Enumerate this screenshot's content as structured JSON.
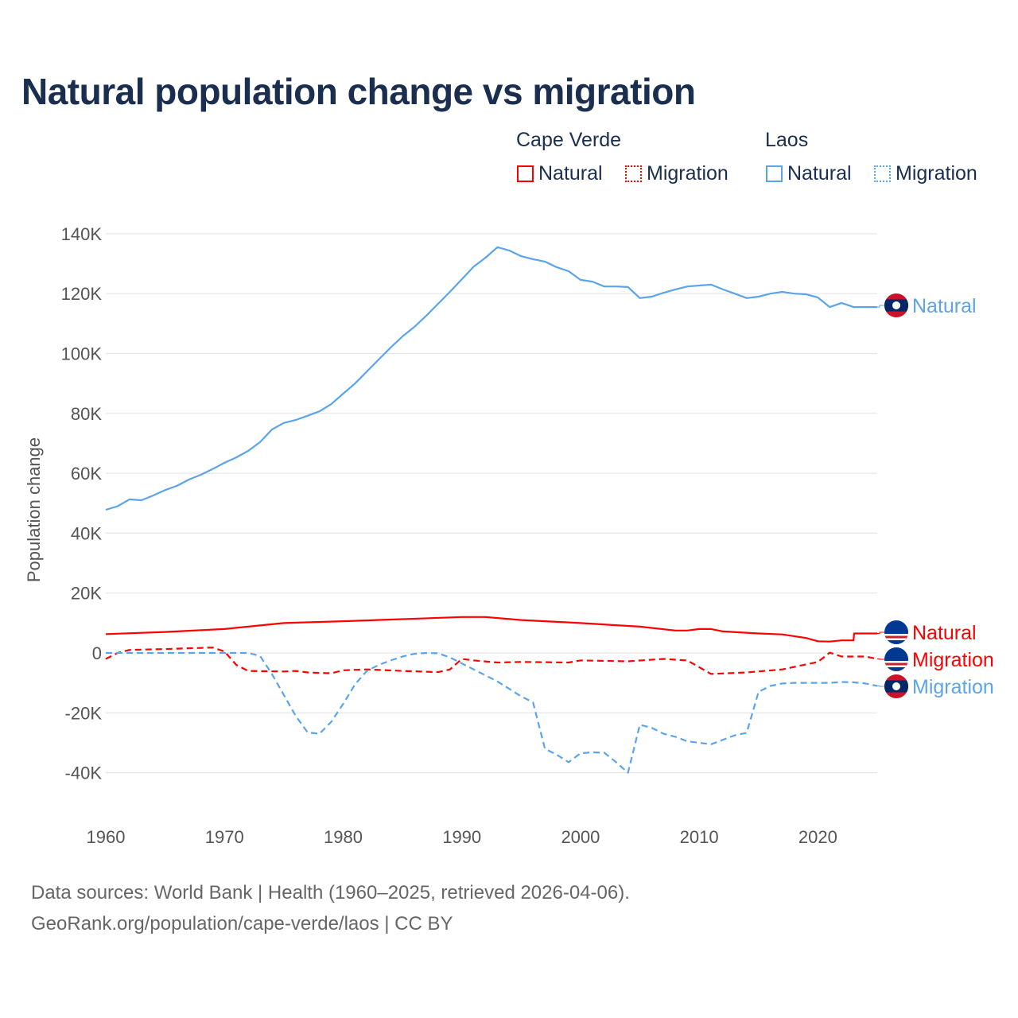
{
  "title": "Natural population change vs migration",
  "legend": {
    "groups": [
      {
        "name": "Cape Verde",
        "items": [
          "Natural",
          "Migration"
        ]
      },
      {
        "name": "Laos",
        "items": [
          "Natural",
          "Migration"
        ]
      }
    ]
  },
  "footer": {
    "line1": "Data sources: World Bank | Health (1960–2025, retrieved 2026-04-06).",
    "line2": "GeoRank.org/population/cape-verde/laos | CC BY"
  },
  "colors": {
    "cape_verde": "#ff0000",
    "laos": "#5ba4ec",
    "grid": "#e6e6e6"
  },
  "chart_data": {
    "type": "line",
    "title": "Natural population change vs migration",
    "xlabel": "",
    "ylabel": "Population change",
    "xlim": [
      1960,
      2025
    ],
    "ylim": [
      -50000,
      140000
    ],
    "xticks": [
      1960,
      1970,
      1980,
      1990,
      2000,
      2010,
      2020
    ],
    "xtick_labels": [
      "1960",
      "1970",
      "1980",
      "1990",
      "2000",
      "2010",
      "2020"
    ],
    "yticks": [
      140000,
      120000,
      100000,
      80000,
      60000,
      40000,
      20000,
      0,
      -20000,
      -40000
    ],
    "ytick_labels": [
      "140K",
      "120K",
      "100K",
      "80K",
      "60K",
      "40K",
      "20K",
      "0",
      "-20K",
      "-40K"
    ],
    "grid": true,
    "series": [
      {
        "name": "Laos Natural",
        "country": "Laos",
        "kind": "Natural",
        "color": "#5ba4ec",
        "dash": "solid",
        "label": "Natural",
        "points": [
          [
            1960,
            47800
          ],
          [
            1961,
            49000
          ],
          [
            1962,
            51300
          ],
          [
            1963,
            51000
          ],
          [
            1964,
            52600
          ],
          [
            1965,
            54400
          ],
          [
            1966,
            55800
          ],
          [
            1967,
            57900
          ],
          [
            1968,
            59500
          ],
          [
            1969,
            61400
          ],
          [
            1970,
            63500
          ],
          [
            1971,
            65300
          ],
          [
            1972,
            67500
          ],
          [
            1973,
            70400
          ],
          [
            1974,
            74600
          ],
          [
            1975,
            76800
          ],
          [
            1976,
            77800
          ],
          [
            1977,
            79200
          ],
          [
            1978,
            80700
          ],
          [
            1979,
            83100
          ],
          [
            1980,
            86600
          ],
          [
            1981,
            90000
          ],
          [
            1982,
            94000
          ],
          [
            1983,
            98000
          ],
          [
            1984,
            102000
          ],
          [
            1985,
            105700
          ],
          [
            1986,
            108900
          ],
          [
            1987,
            112600
          ],
          [
            1988,
            116600
          ],
          [
            1989,
            120600
          ],
          [
            1990,
            124800
          ],
          [
            1991,
            129000
          ],
          [
            1992,
            132000
          ],
          [
            1993,
            135500
          ],
          [
            1994,
            134400
          ],
          [
            1995,
            132500
          ],
          [
            1996,
            131500
          ],
          [
            1997,
            130700
          ],
          [
            1998,
            128800
          ],
          [
            1999,
            127500
          ],
          [
            2000,
            124600
          ],
          [
            2001,
            124000
          ],
          [
            2002,
            122400
          ],
          [
            2003,
            122400
          ],
          [
            2004,
            122200
          ],
          [
            2005,
            118500
          ],
          [
            2006,
            119000
          ],
          [
            2007,
            120300
          ],
          [
            2008,
            121400
          ],
          [
            2009,
            122400
          ],
          [
            2010,
            122700
          ],
          [
            2011,
            123000
          ],
          [
            2012,
            121400
          ],
          [
            2013,
            120000
          ],
          [
            2014,
            118500
          ],
          [
            2015,
            119000
          ],
          [
            2016,
            120000
          ],
          [
            2017,
            120600
          ],
          [
            2018,
            120000
          ],
          [
            2019,
            119800
          ],
          [
            2020,
            118700
          ],
          [
            2021,
            115500
          ],
          [
            2022,
            116900
          ],
          [
            2023,
            115500
          ],
          [
            2024,
            115500
          ],
          [
            2025,
            115500
          ]
        ]
      },
      {
        "name": "Cape Verde Natural",
        "country": "Cape Verde",
        "kind": "Natural",
        "color": "#ff0000",
        "dash": "solid",
        "label": "Natural",
        "points": [
          [
            1960,
            6300
          ],
          [
            1965,
            7000
          ],
          [
            1970,
            8000
          ],
          [
            1975,
            10000
          ],
          [
            1980,
            10600
          ],
          [
            1985,
            11300
          ],
          [
            1990,
            12000
          ],
          [
            1992,
            12000
          ],
          [
            1995,
            11000
          ],
          [
            2000,
            10000
          ],
          [
            2005,
            8800
          ],
          [
            2008,
            7500
          ],
          [
            2009,
            7500
          ],
          [
            2010,
            8000
          ],
          [
            2011,
            8000
          ],
          [
            2012,
            7200
          ],
          [
            2015,
            6500
          ],
          [
            2017,
            6200
          ],
          [
            2019,
            5000
          ],
          [
            2020,
            3900
          ],
          [
            2021,
            3800
          ],
          [
            2022,
            4200
          ],
          [
            2023,
            4200
          ],
          [
            2023.05,
            6500
          ],
          [
            2025,
            6500
          ]
        ]
      },
      {
        "name": "Cape Verde Migration",
        "country": "Cape Verde",
        "kind": "Migration",
        "color": "#ff0000",
        "dash": "dashed",
        "label": "Migration",
        "points": [
          [
            1960,
            -2000
          ],
          [
            1961,
            0
          ],
          [
            1962,
            1000
          ],
          [
            1965,
            1300
          ],
          [
            1969,
            1800
          ],
          [
            1970,
            500
          ],
          [
            1971,
            -4000
          ],
          [
            1972,
            -6000
          ],
          [
            1975,
            -6200
          ],
          [
            1976,
            -6000
          ],
          [
            1977,
            -6500
          ],
          [
            1979,
            -6800
          ],
          [
            1980,
            -5800
          ],
          [
            1982,
            -5500
          ],
          [
            1985,
            -6000
          ],
          [
            1988,
            -6400
          ],
          [
            1989,
            -5500
          ],
          [
            1990,
            -2000
          ],
          [
            1991,
            -2500
          ],
          [
            1993,
            -3200
          ],
          [
            1995,
            -3000
          ],
          [
            1999,
            -3200
          ],
          [
            2000,
            -2500
          ],
          [
            2004,
            -2800
          ],
          [
            2007,
            -2000
          ],
          [
            2009,
            -2500
          ],
          [
            2011,
            -7000
          ],
          [
            2014,
            -6500
          ],
          [
            2017,
            -5500
          ],
          [
            2020,
            -3000
          ],
          [
            2021,
            100
          ],
          [
            2022,
            -1200
          ],
          [
            2024,
            -1200
          ],
          [
            2025,
            -2000
          ]
        ]
      },
      {
        "name": "Laos Migration",
        "country": "Laos",
        "kind": "Migration",
        "color": "#5ba4ec",
        "dash": "dashed",
        "label": "Migration",
        "points": [
          [
            1960,
            0
          ],
          [
            1972,
            0
          ],
          [
            1973,
            -1000
          ],
          [
            1974,
            -7000
          ],
          [
            1975,
            -14000
          ],
          [
            1976,
            -21000
          ],
          [
            1977,
            -26500
          ],
          [
            1978,
            -27000
          ],
          [
            1979,
            -23000
          ],
          [
            1980,
            -17000
          ],
          [
            1981,
            -10500
          ],
          [
            1982,
            -6000
          ],
          [
            1983,
            -4000
          ],
          [
            1984,
            -2500
          ],
          [
            1985,
            -1200
          ],
          [
            1986,
            -300
          ],
          [
            1987,
            0
          ],
          [
            1988,
            -100
          ],
          [
            1989,
            -1500
          ],
          [
            1990,
            -3500
          ],
          [
            1991,
            -5500
          ],
          [
            1992,
            -7500
          ],
          [
            1993,
            -9500
          ],
          [
            1994,
            -12000
          ],
          [
            1995,
            -14500
          ],
          [
            1996,
            -16500
          ],
          [
            1997,
            -32000
          ],
          [
            1998,
            -34000
          ],
          [
            1999,
            -36500
          ],
          [
            2000,
            -33500
          ],
          [
            2001,
            -33200
          ],
          [
            2002,
            -33300
          ],
          [
            2003,
            -36500
          ],
          [
            2004,
            -40000
          ],
          [
            2005,
            -24000
          ],
          [
            2006,
            -25000
          ],
          [
            2007,
            -27000
          ],
          [
            2008,
            -28000
          ],
          [
            2009,
            -29500
          ],
          [
            2010,
            -30000
          ],
          [
            2011,
            -30500
          ],
          [
            2012,
            -29000
          ],
          [
            2013,
            -27500
          ],
          [
            2014,
            -26700
          ],
          [
            2015,
            -13000
          ],
          [
            2016,
            -11000
          ],
          [
            2017,
            -10200
          ],
          [
            2018,
            -10000
          ],
          [
            2020,
            -10000
          ],
          [
            2021,
            -10000
          ],
          [
            2022,
            -9700
          ],
          [
            2023,
            -9800
          ],
          [
            2024,
            -10200
          ],
          [
            2025,
            -11000
          ]
        ]
      }
    ]
  }
}
